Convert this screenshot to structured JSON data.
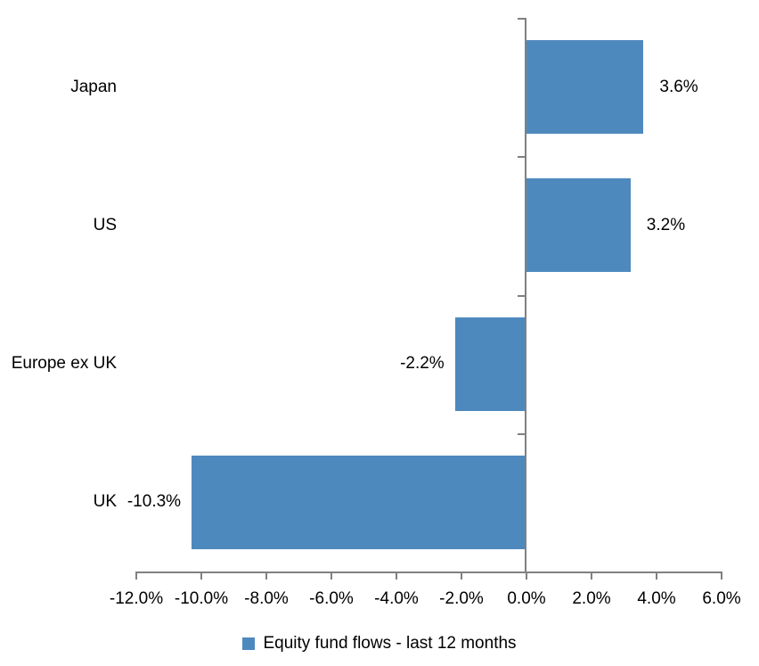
{
  "chart_data": {
    "type": "bar",
    "orientation": "horizontal",
    "title": "",
    "categories": [
      "Japan",
      "US",
      "Europe ex UK",
      "UK"
    ],
    "values": [
      3.6,
      3.2,
      -2.2,
      -10.3
    ],
    "data_labels": [
      "3.6%",
      "3.2%",
      "-2.2%",
      "-10.3%"
    ],
    "xlim": [
      -12,
      6
    ],
    "x_ticks": [
      -12,
      -10,
      -8,
      -6,
      -4,
      -2,
      0,
      2,
      4,
      6
    ],
    "x_tick_labels": [
      "-12.0%",
      "-10.0%",
      "-8.0%",
      "-6.0%",
      "-4.0%",
      "-2.0%",
      "0.0%",
      "2.0%",
      "4.0%",
      "6.0%"
    ],
    "grid": false,
    "legend_position": "bottom-center",
    "legend": [
      {
        "label": "Equity fund flows - last 12 months",
        "color": "#4E89BE"
      }
    ],
    "bar_color": "#4E89BE",
    "axis_color": "#808080",
    "text_color": "#000000",
    "background_color": "#ffffff"
  }
}
